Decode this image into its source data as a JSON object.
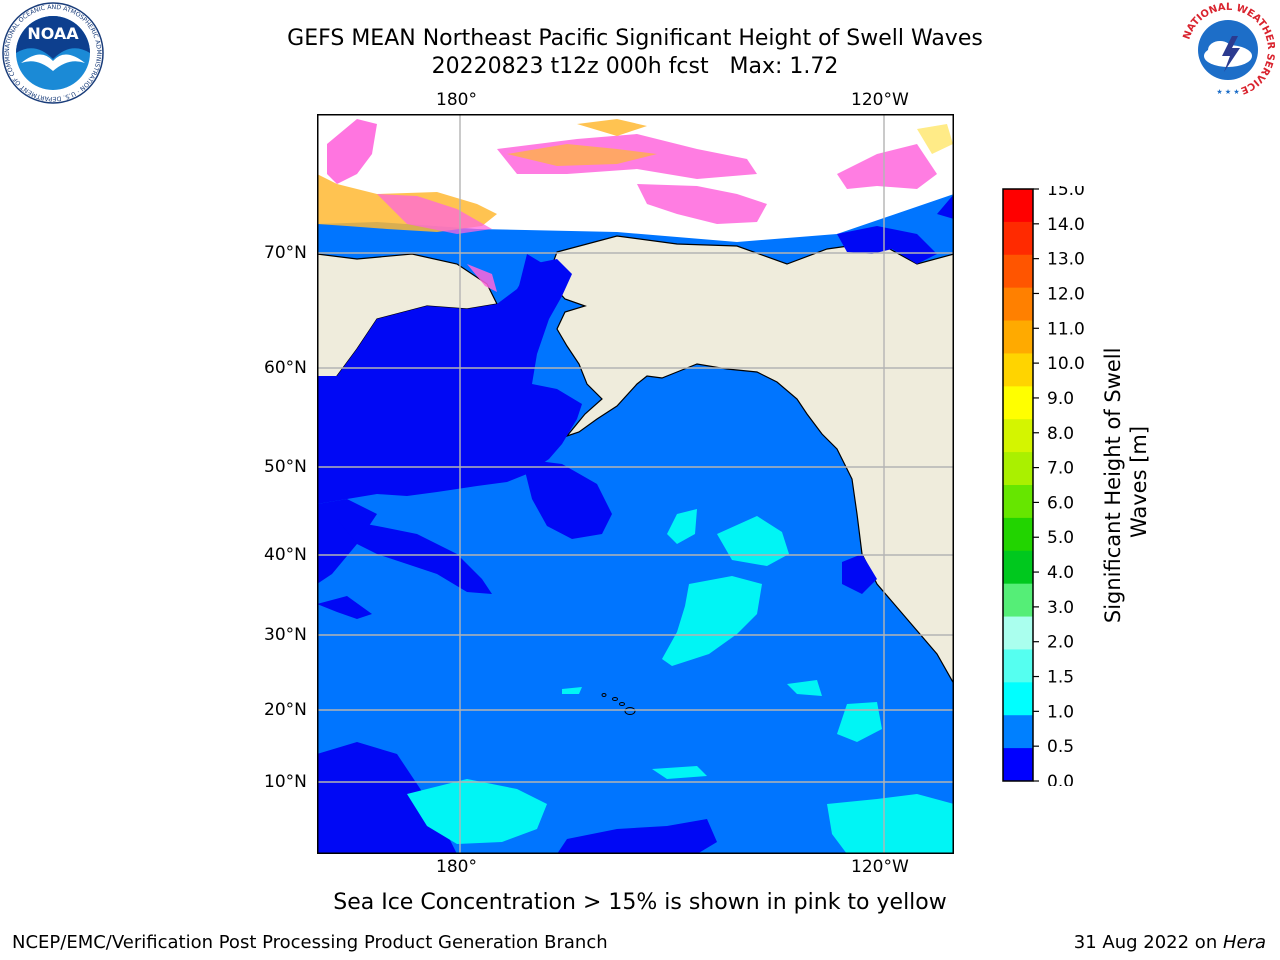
{
  "header": {
    "title_line1": "GEFS MEAN Northeast Pacific Significant Height of Swell Waves",
    "title_line2": "20220823 t12z 000h fcst   Max: 1.72"
  },
  "logos": {
    "left": {
      "name": "NOAA",
      "ring_text": "NATIONAL OCEANIC AND ATMOSPHERIC ADMINISTRATION · U.S. DEPARTMENT OF COMMERCE"
    },
    "right": {
      "name": "National Weather Service",
      "ring_text": "NATIONAL WEATHER SERVICE"
    }
  },
  "map": {
    "lon_ticks_top": [
      "180°",
      "120°W"
    ],
    "lon_ticks_bottom": [
      "180°",
      "120°W"
    ],
    "lat_ticks": [
      "70°N",
      "60°N",
      "50°N",
      "40°N",
      "30°N",
      "20°N",
      "10°N"
    ],
    "colors": {
      "land": "#efecdc",
      "band_0_0.5": "#0008f5",
      "band_0.5_1.0": "#0075ff",
      "band_1.0_1.5": "#00f5f5",
      "grid": "#b4b4b4",
      "ice_pink": "#ff66dd",
      "ice_orange": "#ffb833",
      "ice_yellow": "#ffe97a"
    }
  },
  "colorbar": {
    "title": "Significant Height of Swell Waves [m]",
    "title_lines": [
      "Significant Height of Swell",
      "Waves [m]"
    ],
    "tick_labels": [
      "15.0",
      "14.0",
      "13.0",
      "12.0",
      "11.0",
      "10.0",
      "9.0",
      "8.0",
      "7.0",
      "6.0",
      "5.0",
      "4.0",
      "3.0",
      "2.0",
      "1.5",
      "1.0",
      "0.5",
      "0.0"
    ],
    "colors_top_to_bottom": [
      "#ff0000",
      "#ff2a00",
      "#ff5500",
      "#ff8000",
      "#ffaa00",
      "#ffd400",
      "#ffff00",
      "#d4f500",
      "#aaf000",
      "#66e600",
      "#22d400",
      "#00c81e",
      "#55ee77",
      "#aaffee",
      "#55fff0",
      "#00ffff",
      "#0080ff",
      "#0000ff"
    ]
  },
  "footnote": "Sea Ice Concentration > 15% is shown in pink to yellow",
  "footer": {
    "left": "NCEP/EMC/Verification Post Processing Product Generation Branch",
    "date": "31 Aug 2022 on ",
    "host": "Hera"
  }
}
